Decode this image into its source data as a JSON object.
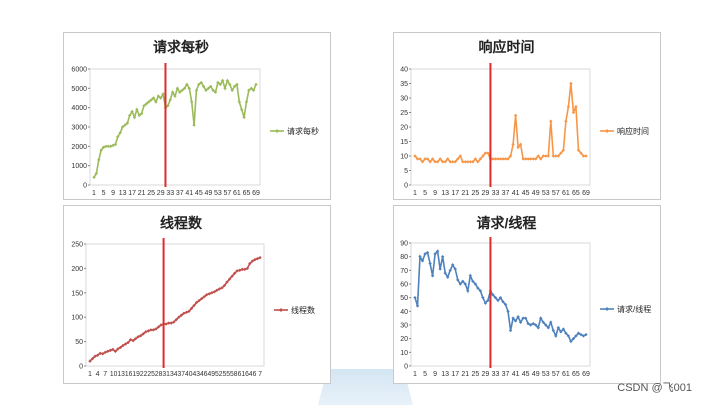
{
  "watermark": "CSDN @飞001",
  "chart_data": [
    {
      "type": "line",
      "title": "请求每秒",
      "legend": "请求每秒",
      "legend_position": "right",
      "color": "#9bbb59",
      "ylim": [
        0,
        6000
      ],
      "ytick_step": 1000,
      "x_ticks": [
        "1",
        "5",
        "9",
        "13",
        "17",
        "21",
        "25",
        "29",
        "33",
        "37",
        "41",
        "45",
        "49",
        "53",
        "57",
        "61",
        "65",
        "69"
      ],
      "x": [
        1,
        2,
        3,
        4,
        5,
        6,
        7,
        8,
        9,
        10,
        11,
        12,
        13,
        14,
        15,
        16,
        17,
        18,
        19,
        20,
        21,
        22,
        23,
        24,
        25,
        26,
        27,
        28,
        29,
        30,
        31,
        32,
        33,
        34,
        35,
        36,
        37,
        38,
        39,
        40,
        41,
        42,
        43,
        44,
        45,
        46,
        47,
        48,
        49,
        50,
        51,
        52,
        53,
        54,
        55,
        56,
        57,
        58,
        59,
        60,
        61,
        62,
        63,
        64,
        65,
        66,
        67,
        68,
        69
      ],
      "values": [
        400,
        600,
        1300,
        1800,
        1950,
        2000,
        2000,
        2000,
        2050,
        2100,
        2500,
        2700,
        3000,
        3100,
        3200,
        3600,
        3800,
        3500,
        3900,
        3600,
        3700,
        4100,
        4200,
        4300,
        4400,
        4500,
        4300,
        4600,
        4500,
        4700,
        4000,
        4100,
        4400,
        4800,
        4600,
        5000,
        4800,
        4900,
        5000,
        5200,
        5000,
        4300,
        3100,
        4900,
        5200,
        5300,
        5100,
        4900,
        5000,
        5100,
        4900,
        4800,
        5300,
        5200,
        5400,
        5000,
        5400,
        5200,
        4900,
        5100,
        5200,
        4300,
        3900,
        3500,
        4300,
        4900,
        5000,
        4900,
        5200
      ],
      "red_line_x": 31
    },
    {
      "type": "line",
      "title": "响应时间",
      "legend": "响应时间",
      "legend_position": "right",
      "color": "#f79646",
      "ylim": [
        0,
        40
      ],
      "ytick_step": 5,
      "x_ticks": [
        "1",
        "5",
        "9",
        "13",
        "17",
        "21",
        "25",
        "29",
        "33",
        "37",
        "41",
        "45",
        "49",
        "53",
        "57",
        "61",
        "65",
        "69"
      ],
      "x": [
        1,
        2,
        3,
        4,
        5,
        6,
        7,
        8,
        9,
        10,
        11,
        12,
        13,
        14,
        15,
        16,
        17,
        18,
        19,
        20,
        21,
        22,
        23,
        24,
        25,
        26,
        27,
        28,
        29,
        30,
        31,
        32,
        33,
        34,
        35,
        36,
        37,
        38,
        39,
        40,
        41,
        42,
        43,
        44,
        45,
        46,
        47,
        48,
        49,
        50,
        51,
        52,
        53,
        54,
        55,
        56,
        57,
        58,
        59,
        60,
        61,
        62,
        63,
        64,
        65,
        66,
        67,
        68,
        69
      ],
      "values": [
        10,
        9,
        9,
        8,
        9,
        9,
        8,
        9,
        8,
        8,
        9,
        8,
        8,
        9,
        8,
        8,
        8,
        9,
        10,
        8,
        8,
        8,
        8,
        8,
        9,
        8,
        9,
        10,
        11,
        11,
        9,
        9,
        9,
        9,
        9,
        9,
        9,
        9,
        10,
        14,
        24,
        13,
        14,
        9,
        9,
        9,
        9,
        9,
        9,
        10,
        9,
        10,
        10,
        10,
        22,
        10,
        10,
        10,
        11,
        12,
        22,
        27,
        35,
        25,
        27,
        12,
        11,
        10,
        10
      ],
      "red_line_x": 31
    },
    {
      "type": "line",
      "title": "线程数",
      "legend": "线程数",
      "legend_position": "right",
      "color": "#c0504d",
      "ylim": [
        0,
        250
      ],
      "ytick_step": 50,
      "x_ticks": [
        "1",
        "4",
        "7",
        "10",
        "13",
        "16",
        "19",
        "22",
        "25",
        "28",
        "31",
        "34",
        "37",
        "40",
        "43",
        "46",
        "49",
        "52",
        "55",
        "58",
        "61",
        "64",
        "67"
      ],
      "x_tick_labels": [
        "1",
        "4",
        "7",
        "101316192225283134374043464952555861646 7"
      ],
      "x": [
        1,
        2,
        3,
        4,
        5,
        6,
        7,
        8,
        9,
        10,
        11,
        12,
        13,
        14,
        15,
        16,
        17,
        18,
        19,
        20,
        21,
        22,
        23,
        24,
        25,
        26,
        27,
        28,
        29,
        30,
        31,
        32,
        33,
        34,
        35,
        36,
        37,
        38,
        39,
        40,
        41,
        42,
        43,
        44,
        45,
        46,
        47,
        48,
        49,
        50,
        51,
        52,
        53,
        54,
        55,
        56,
        57,
        58,
        59,
        60,
        61,
        62,
        63,
        64,
        65,
        66,
        67,
        68
      ],
      "values": [
        10,
        15,
        20,
        22,
        26,
        25,
        28,
        30,
        32,
        34,
        30,
        35,
        38,
        42,
        45,
        48,
        54,
        52,
        56,
        60,
        62,
        66,
        70,
        72,
        74,
        74,
        76,
        80,
        84,
        86,
        86,
        88,
        88,
        90,
        95,
        100,
        104,
        108,
        110,
        112,
        118,
        124,
        130,
        134,
        138,
        142,
        146,
        148,
        150,
        152,
        155,
        158,
        160,
        165,
        172,
        178,
        184,
        190,
        195,
        196,
        198,
        198,
        200,
        210,
        215,
        218,
        220,
        222
      ],
      "red_line_x": 30
    },
    {
      "type": "line",
      "title": "请求/线程",
      "legend": "请求/线程",
      "legend_position": "right",
      "color": "#4f81bd",
      "ylim": [
        0,
        90
      ],
      "ytick_step": 10,
      "x_ticks": [
        "1",
        "5",
        "9",
        "13",
        "17",
        "21",
        "25",
        "29",
        "33",
        "37",
        "41",
        "45",
        "49",
        "53",
        "57",
        "61",
        "65",
        "69"
      ],
      "x": [
        1,
        2,
        3,
        4,
        5,
        6,
        7,
        8,
        9,
        10,
        11,
        12,
        13,
        14,
        15,
        16,
        17,
        18,
        19,
        20,
        21,
        22,
        23,
        24,
        25,
        26,
        27,
        28,
        29,
        30,
        31,
        32,
        33,
        34,
        35,
        36,
        37,
        38,
        39,
        40,
        41,
        42,
        43,
        44,
        45,
        46,
        47,
        48,
        49,
        50,
        51,
        52,
        53,
        54,
        55,
        56,
        57,
        58,
        59,
        60,
        61,
        62,
        63,
        64,
        65,
        66,
        67,
        68,
        69
      ],
      "values": [
        50,
        44,
        80,
        77,
        82,
        83,
        75,
        66,
        82,
        84,
        71,
        80,
        68,
        65,
        70,
        74,
        71,
        63,
        60,
        62,
        60,
        55,
        66,
        62,
        60,
        57,
        55,
        50,
        46,
        48,
        55,
        52,
        50,
        48,
        50,
        47,
        45,
        40,
        26,
        35,
        33,
        36,
        32,
        35,
        35,
        31,
        30,
        31,
        30,
        28,
        35,
        32,
        30,
        28,
        32,
        26,
        22,
        28,
        25,
        27,
        24,
        22,
        18,
        20,
        22,
        24,
        23,
        22,
        23
      ],
      "red_line_x": 31
    }
  ]
}
